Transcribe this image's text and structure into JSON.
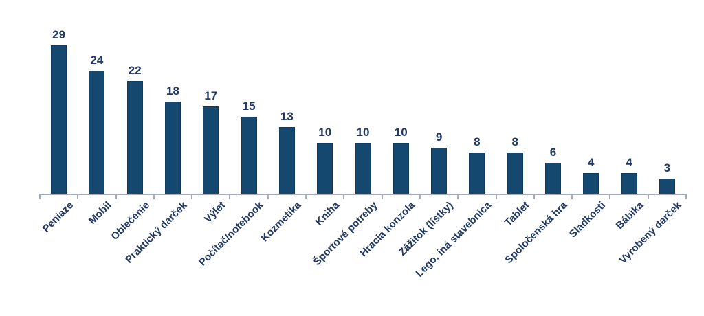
{
  "chart_data": {
    "type": "bar",
    "categories": [
      "Peniaze",
      "Mobil",
      "Oblečenie",
      "Praktický darček",
      "Výlet",
      "Počítač/notebook",
      "Kozmetika",
      "Kniha",
      "Športové potreby",
      "Hracia konzola",
      "Zážitok (lístky)",
      "Lego, iná stavebnica",
      "Tablet",
      "Spoločenská hra",
      "Sladkosti",
      "Bábika",
      "Vyrobený darček"
    ],
    "values": [
      29,
      24,
      22,
      18,
      17,
      15,
      13,
      10,
      10,
      10,
      9,
      8,
      8,
      6,
      4,
      4,
      3
    ],
    "title": "",
    "xlabel": "",
    "ylabel": "",
    "ylim": [
      0,
      30
    ],
    "grid": false,
    "legend_position": "none",
    "value_labels_shown": true,
    "x_tick_rotation_deg": 45,
    "colors": {
      "bar_fill": "#15486F",
      "bar_border": "#123A5C",
      "value_label": "#1F3864",
      "category_label": "#1F3864",
      "axis": "#A3ADC2",
      "background": "#FFFFFF"
    }
  }
}
